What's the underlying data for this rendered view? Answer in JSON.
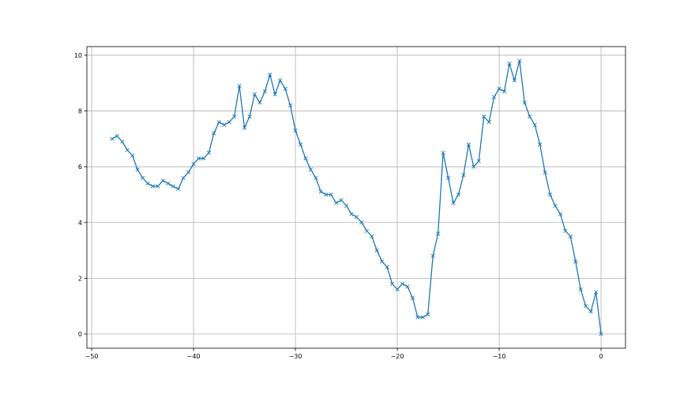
{
  "chart_data": {
    "type": "line",
    "title": "",
    "xlabel": "",
    "ylabel": "",
    "xlim": [
      -50.47,
      2.4
    ],
    "ylim": [
      -0.51,
      10.31
    ],
    "xticks": [
      -50,
      -40,
      -30,
      -20,
      -10,
      0
    ],
    "yticks": [
      0,
      2,
      4,
      6,
      8,
      10
    ],
    "grid": true,
    "marker": "x",
    "color": "#1f77b4",
    "x_start": -48,
    "x_step": 0.5,
    "series": [
      {
        "values": [
          7.0,
          7.1,
          6.9,
          6.6,
          6.4,
          5.9,
          5.6,
          5.4,
          5.3,
          5.3,
          5.5,
          5.4,
          5.3,
          5.2,
          5.6,
          5.8,
          6.1,
          6.3,
          6.3,
          6.5,
          7.2,
          7.6,
          7.5,
          7.6,
          7.8,
          8.9,
          7.4,
          7.8,
          8.6,
          8.3,
          8.7,
          9.3,
          8.6,
          9.1,
          8.8,
          8.2,
          7.3,
          6.8,
          6.3,
          5.9,
          5.6,
          5.1,
          5.0,
          5.0,
          4.7,
          4.8,
          4.6,
          4.3,
          4.2,
          4.0,
          3.7,
          3.5,
          3.0,
          2.6,
          2.4,
          1.8,
          1.6,
          1.8,
          1.7,
          1.3,
          0.6,
          0.6,
          0.7,
          2.8,
          3.6,
          6.5,
          5.6,
          4.7,
          5.0,
          5.7,
          6.8,
          6.0,
          6.2,
          7.8,
          7.6,
          8.5,
          8.8,
          8.7,
          9.7,
          9.1,
          9.8,
          8.3,
          7.8,
          7.5,
          6.8,
          5.8,
          5.0,
          4.6,
          4.3,
          3.7,
          3.5,
          2.6,
          1.6,
          1.0,
          0.8,
          1.5,
          0.0
        ]
      }
    ]
  }
}
